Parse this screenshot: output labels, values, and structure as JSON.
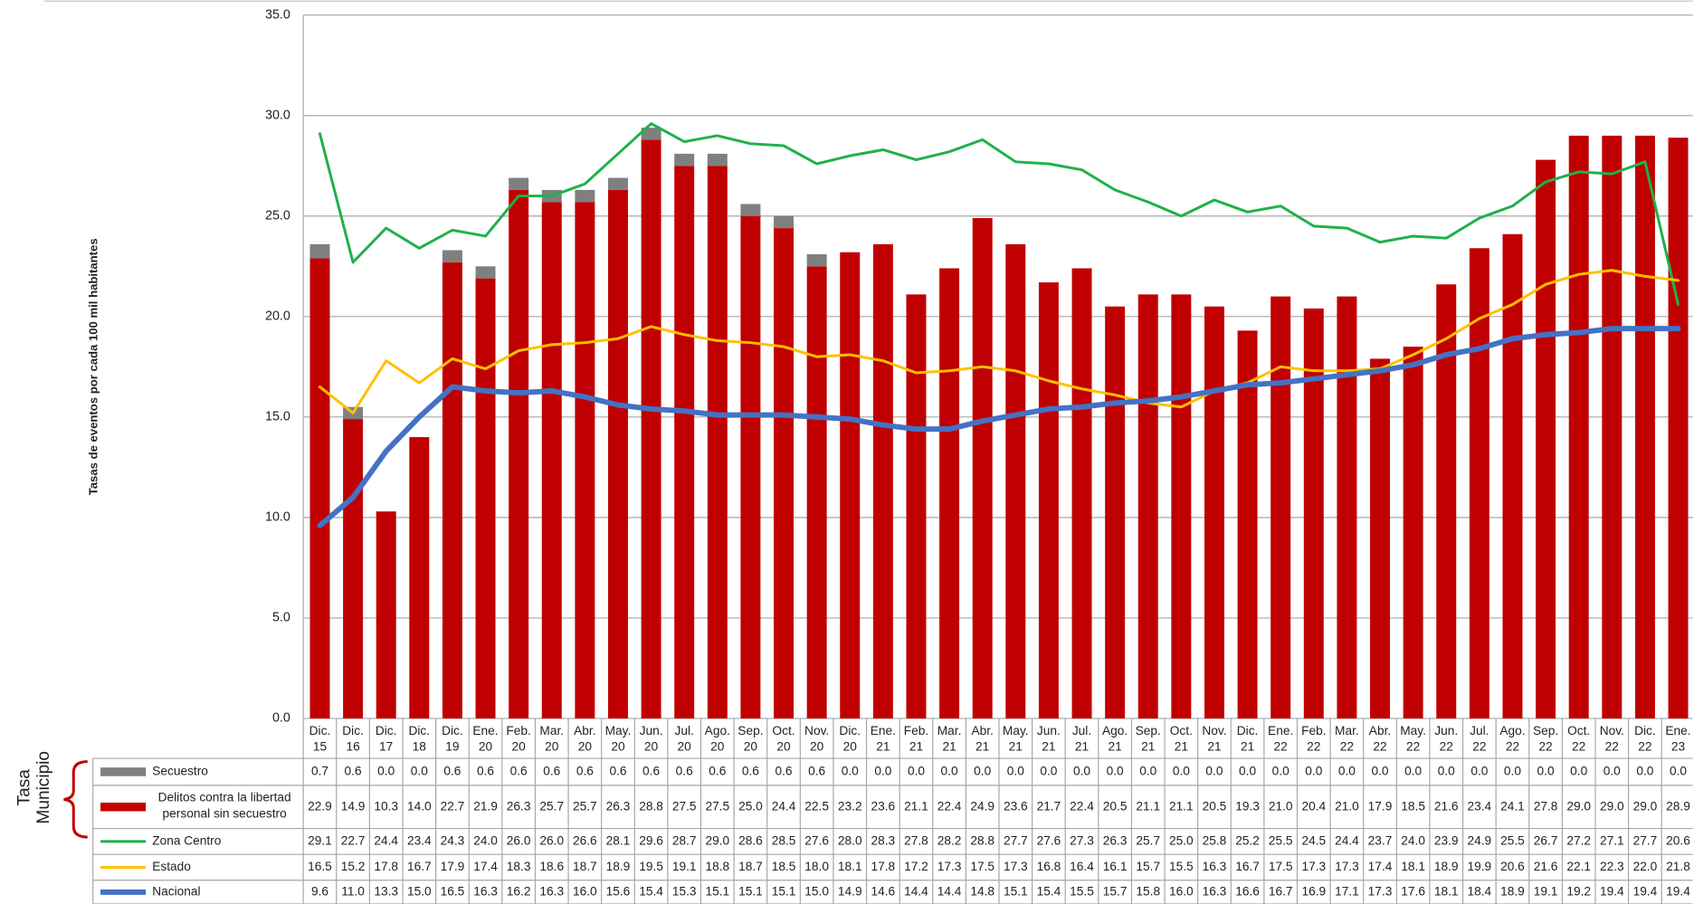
{
  "chart_data": {
    "type": "bar",
    "y_axis_label": "Tasas de eventos por cada 100 mil habitantes",
    "table_group_label": [
      "Tasa",
      "Municipio"
    ],
    "categories": [
      "Dic. 15",
      "Dic. 16",
      "Dic. 17",
      "Dic. 18",
      "Dic. 19",
      "Ene. 20",
      "Feb. 20",
      "Mar. 20",
      "Abr. 20",
      "May. 20",
      "Jun. 20",
      "Jul. 20",
      "Ago. 20",
      "Sep. 20",
      "Oct. 20",
      "Nov. 20",
      "Dic. 20",
      "Ene. 21",
      "Feb. 21",
      "Mar. 21",
      "Abr. 21",
      "May. 21",
      "Jun. 21",
      "Jul. 21",
      "Ago. 21",
      "Sep. 21",
      "Oct. 21",
      "Nov. 21",
      "Dic. 21",
      "Ene. 22",
      "Feb. 22",
      "Mar. 22",
      "Abr. 22",
      "May. 22",
      "Jun. 22",
      "Jul. 22",
      "Ago. 22",
      "Sep. 22",
      "Oct. 22",
      "Nov. 22",
      "Dic. 22",
      "Ene. 23"
    ],
    "ylim": [
      0,
      35
    ],
    "yticks": [
      {
        "value": 0,
        "label": "0.0"
      },
      {
        "value": 5,
        "label": "5.0"
      },
      {
        "value": 10,
        "label": "10.0"
      },
      {
        "value": 15,
        "label": "15.0"
      },
      {
        "value": 20,
        "label": "20.0"
      },
      {
        "value": 25,
        "label": "25.0"
      },
      {
        "value": 30,
        "label": "30.0"
      },
      {
        "value": 35,
        "label": "35.0"
      }
    ],
    "grid": true,
    "stacked": true,
    "series": [
      {
        "name": "Secuestro",
        "type": "bar",
        "color": "#7f7f7f",
        "values": [
          0.7,
          0.6,
          0,
          0,
          0.6,
          0.6,
          0.6,
          0.6,
          0.6,
          0.6,
          0.6,
          0.6,
          0.6,
          0.6,
          0.6,
          0.6,
          0,
          0,
          0,
          0,
          0,
          0,
          0,
          0,
          0,
          0,
          0,
          0,
          0,
          0,
          0,
          0,
          0,
          0,
          0,
          0,
          0,
          0,
          0,
          0,
          0,
          0
        ],
        "value_labels": [
          "0.7",
          "0.6",
          "0.0",
          "0.0",
          "0.6",
          "0.6",
          "0.6",
          "0.6",
          "0.6",
          "0.6",
          "0.6",
          "0.6",
          "0.6",
          "0.6",
          "0.6",
          "0.6",
          "0.0",
          "0.0",
          "0.0",
          "0.0",
          "0.0",
          "0.0",
          "0.0",
          "0.0",
          "0.0",
          "0.0",
          "0.0",
          "0.0",
          "0.0",
          "0.0",
          "0.0",
          "0.0",
          "0.0",
          "0.0",
          "0.0",
          "0.0",
          "0.0",
          "0.0",
          "0.0",
          "0.0",
          "0.0",
          "0.0"
        ]
      },
      {
        "name": "Delitos contra la libertad personal sin secuestro",
        "type": "bar",
        "color": "#c00000",
        "values": [
          22.9,
          14.9,
          10.3,
          14,
          22.7,
          21.9,
          26.3,
          25.7,
          25.7,
          26.3,
          28.8,
          27.5,
          27.5,
          25,
          24.4,
          22.5,
          23.2,
          23.6,
          21.1,
          22.4,
          24.9,
          23.6,
          21.7,
          22.4,
          20.5,
          21.1,
          21.1,
          20.5,
          19.3,
          21,
          20.4,
          21,
          17.9,
          18.5,
          21.6,
          23.4,
          24.1,
          27.8,
          29,
          29,
          29,
          28.9
        ],
        "value_labels": [
          "22.9",
          "14.9",
          "10.3",
          "14.0",
          "22.7",
          "21.9",
          "26.3",
          "25.7",
          "25.7",
          "26.3",
          "28.8",
          "27.5",
          "27.5",
          "25.0",
          "24.4",
          "22.5",
          "23.2",
          "23.6",
          "21.1",
          "22.4",
          "24.9",
          "23.6",
          "21.7",
          "22.4",
          "20.5",
          "21.1",
          "21.1",
          "20.5",
          "19.3",
          "21.0",
          "20.4",
          "21.0",
          "17.9",
          "18.5",
          "21.6",
          "23.4",
          "24.1",
          "27.8",
          "29.0",
          "29.0",
          "29.0",
          "28.9"
        ]
      },
      {
        "name": "Zona Centro",
        "type": "line",
        "color": "#1fb14a",
        "values": [
          29.1,
          22.7,
          24.4,
          23.4,
          24.3,
          24,
          26,
          26,
          26.6,
          28.1,
          29.6,
          28.7,
          29,
          28.6,
          28.5,
          27.6,
          28,
          28.3,
          27.8,
          28.2,
          28.8,
          27.7,
          27.6,
          27.3,
          26.3,
          25.7,
          25,
          25.8,
          25.2,
          25.5,
          24.5,
          24.4,
          23.7,
          24,
          23.9,
          24.9,
          25.5,
          26.7,
          27.2,
          27.1,
          27.7,
          20.6
        ],
        "value_labels": [
          "29.1",
          "22.7",
          "24.4",
          "23.4",
          "24.3",
          "24.0",
          "26.0",
          "26.0",
          "26.6",
          "28.1",
          "29.6",
          "28.7",
          "29.0",
          "28.6",
          "28.5",
          "27.6",
          "28.0",
          "28.3",
          "27.8",
          "28.2",
          "28.8",
          "27.7",
          "27.6",
          "27.3",
          "26.3",
          "25.7",
          "25.0",
          "25.8",
          "25.2",
          "25.5",
          "24.5",
          "24.4",
          "23.7",
          "24.0",
          "23.9",
          "24.9",
          "25.5",
          "26.7",
          "27.2",
          "27.1",
          "27.7",
          "20.6"
        ]
      },
      {
        "name": "Estado",
        "type": "line",
        "color": "#ffc000",
        "values": [
          16.5,
          15.2,
          17.8,
          16.7,
          17.9,
          17.4,
          18.3,
          18.6,
          18.7,
          18.9,
          19.5,
          19.1,
          18.8,
          18.7,
          18.5,
          18,
          18.1,
          17.8,
          17.2,
          17.3,
          17.5,
          17.3,
          16.8,
          16.4,
          16.1,
          15.7,
          15.5,
          16.3,
          16.7,
          17.5,
          17.3,
          17.3,
          17.4,
          18.1,
          18.9,
          19.9,
          20.6,
          21.6,
          22.1,
          22.3,
          22,
          21.8
        ],
        "value_labels": [
          "16.5",
          "15.2",
          "17.8",
          "16.7",
          "17.9",
          "17.4",
          "18.3",
          "18.6",
          "18.7",
          "18.9",
          "19.5",
          "19.1",
          "18.8",
          "18.7",
          "18.5",
          "18.0",
          "18.1",
          "17.8",
          "17.2",
          "17.3",
          "17.5",
          "17.3",
          "16.8",
          "16.4",
          "16.1",
          "15.7",
          "15.5",
          "16.3",
          "16.7",
          "17.5",
          "17.3",
          "17.3",
          "17.4",
          "18.1",
          "18.9",
          "19.9",
          "20.6",
          "21.6",
          "22.1",
          "22.3",
          "22.0",
          "21.8"
        ]
      },
      {
        "name": "Nacional",
        "type": "line",
        "color": "#4472c4",
        "values": [
          9.6,
          11,
          13.3,
          15,
          16.5,
          16.3,
          16.2,
          16.3,
          16,
          15.6,
          15.4,
          15.3,
          15.1,
          15.1,
          15.1,
          15,
          14.9,
          14.6,
          14.4,
          14.4,
          14.8,
          15.1,
          15.4,
          15.5,
          15.7,
          15.8,
          16,
          16.3,
          16.6,
          16.7,
          16.9,
          17.1,
          17.3,
          17.6,
          18.1,
          18.4,
          18.9,
          19.1,
          19.2,
          19.4,
          19.4,
          19.4
        ],
        "value_labels": [
          "9.6",
          "11.0",
          "13.3",
          "15.0",
          "16.5",
          "16.3",
          "16.2",
          "16.3",
          "16.0",
          "15.6",
          "15.4",
          "15.3",
          "15.1",
          "15.1",
          "15.1",
          "15.0",
          "14.9",
          "14.6",
          "14.4",
          "14.4",
          "14.8",
          "15.1",
          "15.4",
          "15.5",
          "15.7",
          "15.8",
          "16.0",
          "16.3",
          "16.6",
          "16.7",
          "16.9",
          "17.1",
          "17.3",
          "17.6",
          "18.1",
          "18.4",
          "18.9",
          "19.1",
          "19.2",
          "19.4",
          "19.4",
          "19.4"
        ]
      }
    ]
  }
}
